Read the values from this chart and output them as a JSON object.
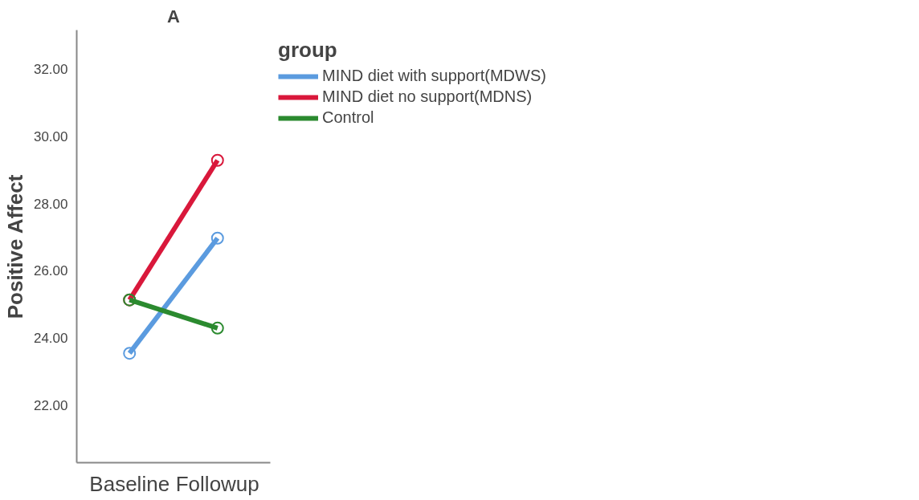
{
  "chart_data": {
    "type": "line",
    "title": "A",
    "ylabel": "Positive Affect",
    "legend_title": "group",
    "categories": [
      "Baseline",
      "Followup"
    ],
    "series": [
      {
        "name": "MIND diet with support(MDWS)",
        "color": "#5b9bdf",
        "values": [
          23.54,
          26.97
        ]
      },
      {
        "name": "MIND diet no support(MDNS)",
        "color": "#d9183b",
        "values": [
          25.13,
          29.29
        ]
      },
      {
        "name": "Control",
        "color": "#2b8a2f",
        "values": [
          25.13,
          24.29
        ]
      }
    ],
    "ylim": [
      20.28,
      33.17
    ],
    "yticks": [
      {
        "value": 22,
        "label": "22.00"
      },
      {
        "value": 24,
        "label": "24.00"
      },
      {
        "value": 26,
        "label": "26.00"
      },
      {
        "value": 28,
        "label": "28.00"
      },
      {
        "value": 30,
        "label": "30.00"
      },
      {
        "value": 32,
        "label": "32.00"
      }
    ],
    "grid": false,
    "legend": "right",
    "marker": "circle",
    "line_style": "solid"
  }
}
